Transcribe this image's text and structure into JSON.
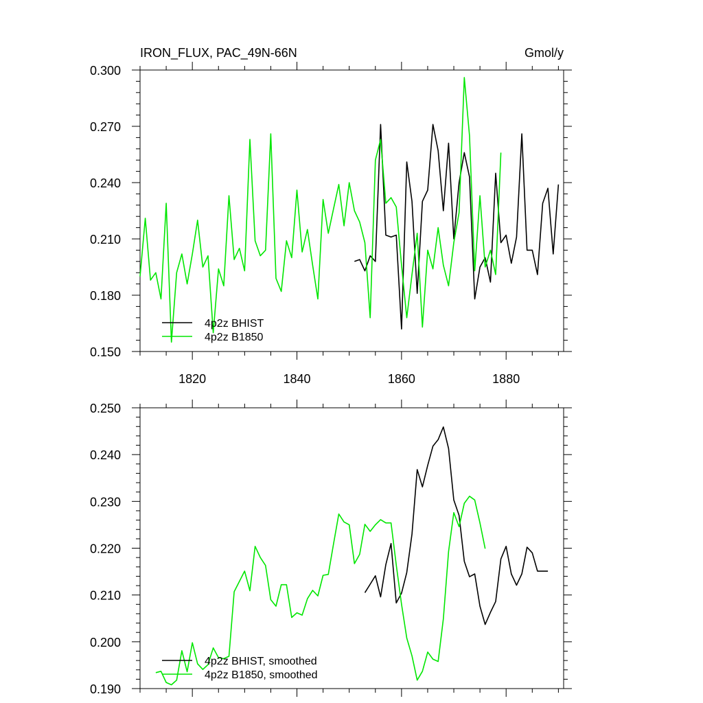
{
  "header": {
    "title_left": "IRON_FLUX, PAC_49N-66N",
    "title_right": "Gmol/y"
  },
  "chart_data": [
    {
      "type": "line",
      "title": "IRON_FLUX, PAC_49N-66N",
      "units": "Gmol/y",
      "xlim": [
        1810,
        1891
      ],
      "ylim": [
        0.15,
        0.3
      ],
      "xticks": [
        1820,
        1840,
        1860,
        1880
      ],
      "xtick_labels": [
        "1820",
        "1840",
        "1860",
        "1880"
      ],
      "yticks": [
        0.15,
        0.18,
        0.21,
        0.24,
        0.27,
        0.3
      ],
      "ytick_labels": [
        "0.150",
        "0.180",
        "0.210",
        "0.240",
        "0.270",
        "0.300"
      ],
      "grid": false,
      "legend_position": "bottom-left",
      "series": [
        {
          "name": "4p2z BHIST",
          "color": "#000000",
          "x": [
            1851,
            1852,
            1853,
            1854,
            1855,
            1856,
            1857,
            1858,
            1859,
            1860,
            1861,
            1862,
            1863,
            1864,
            1865,
            1866,
            1867,
            1868,
            1869,
            1870,
            1871,
            1872,
            1873,
            1874,
            1875,
            1876,
            1877,
            1878,
            1879,
            1880,
            1881,
            1882,
            1883,
            1884,
            1885,
            1886,
            1887,
            1888,
            1889,
            1890
          ],
          "y": [
            0.198,
            0.199,
            0.193,
            0.201,
            0.198,
            0.271,
            0.212,
            0.211,
            0.212,
            0.162,
            0.251,
            0.23,
            0.181,
            0.23,
            0.236,
            0.271,
            0.257,
            0.225,
            0.261,
            0.21,
            0.24,
            0.256,
            0.243,
            0.178,
            0.195,
            0.2,
            0.187,
            0.245,
            0.208,
            0.212,
            0.197,
            0.211,
            0.266,
            0.204,
            0.204,
            0.191,
            0.229,
            0.237,
            0.202,
            0.239
          ]
        },
        {
          "name": "4p2z B1850",
          "color": "#00e600",
          "x": [
            1810,
            1811,
            1812,
            1813,
            1814,
            1815,
            1816,
            1817,
            1818,
            1819,
            1820,
            1821,
            1822,
            1823,
            1824,
            1825,
            1826,
            1827,
            1828,
            1829,
            1830,
            1831,
            1832,
            1833,
            1834,
            1835,
            1836,
            1837,
            1838,
            1839,
            1840,
            1841,
            1842,
            1843,
            1844,
            1845,
            1846,
            1847,
            1848,
            1849,
            1850,
            1851,
            1852,
            1853,
            1854,
            1855,
            1856,
            1857,
            1858,
            1859,
            1860,
            1861,
            1862,
            1863,
            1864,
            1865,
            1866,
            1867,
            1868,
            1869,
            1870,
            1871,
            1872,
            1873,
            1874,
            1875,
            1876,
            1877,
            1878,
            1879
          ],
          "y": [
            0.19,
            0.221,
            0.188,
            0.192,
            0.178,
            0.229,
            0.155,
            0.192,
            0.202,
            0.186,
            0.202,
            0.22,
            0.195,
            0.201,
            0.16,
            0.194,
            0.185,
            0.233,
            0.199,
            0.205,
            0.193,
            0.263,
            0.209,
            0.201,
            0.204,
            0.266,
            0.189,
            0.182,
            0.209,
            0.2,
            0.236,
            0.203,
            0.215,
            0.196,
            0.178,
            0.231,
            0.213,
            0.226,
            0.239,
            0.217,
            0.24,
            0.225,
            0.219,
            0.208,
            0.168,
            0.252,
            0.263,
            0.229,
            0.232,
            0.227,
            0.196,
            0.168,
            0.191,
            0.213,
            0.163,
            0.204,
            0.194,
            0.216,
            0.196,
            0.185,
            0.208,
            0.224,
            0.296,
            0.265,
            0.193,
            0.233,
            0.195,
            0.204,
            0.191,
            0.256
          ]
        }
      ]
    },
    {
      "type": "line",
      "xlim": [
        1810,
        1891
      ],
      "ylim": [
        0.19,
        0.25
      ],
      "xticks": [
        1820,
        1840,
        1860,
        1880
      ],
      "yticks": [
        0.19,
        0.2,
        0.21,
        0.22,
        0.23,
        0.24,
        0.25
      ],
      "ytick_labels": [
        "0.190",
        "0.200",
        "0.210",
        "0.220",
        "0.230",
        "0.240",
        "0.250"
      ],
      "grid": false,
      "legend_position": "bottom-left",
      "series": [
        {
          "name": "4p2z BHIST, smoothed",
          "color": "#000000",
          "x": [
            1853,
            1854,
            1855,
            1856,
            1857,
            1858,
            1859,
            1860,
            1861,
            1862,
            1863,
            1864,
            1865,
            1866,
            1867,
            1868,
            1869,
            1870,
            1871,
            1872,
            1873,
            1874,
            1875,
            1876,
            1877,
            1878,
            1879,
            1880,
            1881,
            1882,
            1883,
            1884,
            1885,
            1886,
            1887,
            1888
          ],
          "y": [
            0.2105,
            0.2123,
            0.2141,
            0.2096,
            0.2165,
            0.221,
            0.2083,
            0.2104,
            0.2148,
            0.223,
            0.2368,
            0.2331,
            0.2377,
            0.2418,
            0.2432,
            0.2459,
            0.2413,
            0.2303,
            0.227,
            0.2172,
            0.2139,
            0.2145,
            0.2076,
            0.2037,
            0.2063,
            0.2086,
            0.2177,
            0.2204,
            0.2145,
            0.2121,
            0.2145,
            0.2202,
            0.219,
            0.2151,
            0.2151,
            0.2151
          ]
        },
        {
          "name": "4p2z B1850, smoothed",
          "color": "#00e600",
          "x": [
            1813,
            1814,
            1815,
            1816,
            1817,
            1818,
            1819,
            1820,
            1821,
            1822,
            1823,
            1824,
            1825,
            1826,
            1827,
            1828,
            1829,
            1830,
            1831,
            1832,
            1833,
            1834,
            1835,
            1836,
            1837,
            1838,
            1839,
            1840,
            1841,
            1842,
            1843,
            1844,
            1845,
            1846,
            1847,
            1848,
            1849,
            1850,
            1851,
            1852,
            1853,
            1854,
            1855,
            1856,
            1857,
            1858,
            1859,
            1860,
            1861,
            1862,
            1863,
            1864,
            1865,
            1866,
            1867,
            1868,
            1869,
            1870,
            1871,
            1872,
            1873,
            1874,
            1875,
            1876
          ],
          "y": [
            0.1934,
            0.1937,
            0.1913,
            0.1908,
            0.1918,
            0.1981,
            0.1936,
            0.1998,
            0.1953,
            0.1941,
            0.1951,
            0.1987,
            0.1966,
            0.1964,
            0.1969,
            0.2107,
            0.2129,
            0.2151,
            0.2109,
            0.2204,
            0.218,
            0.2163,
            0.209,
            0.2076,
            0.2122,
            0.2122,
            0.2052,
            0.2062,
            0.2057,
            0.2092,
            0.211,
            0.2098,
            0.2142,
            0.2144,
            0.2209,
            0.2273,
            0.2256,
            0.225,
            0.2167,
            0.2187,
            0.2251,
            0.2236,
            0.225,
            0.2261,
            0.2254,
            0.2254,
            0.2164,
            0.208,
            0.2008,
            0.197,
            0.1918,
            0.1937,
            0.1978,
            0.1963,
            0.1958,
            0.2049,
            0.2193,
            0.2276,
            0.2246,
            0.2296,
            0.2311,
            0.2303,
            0.2254,
            0.2199
          ]
        }
      ]
    }
  ]
}
